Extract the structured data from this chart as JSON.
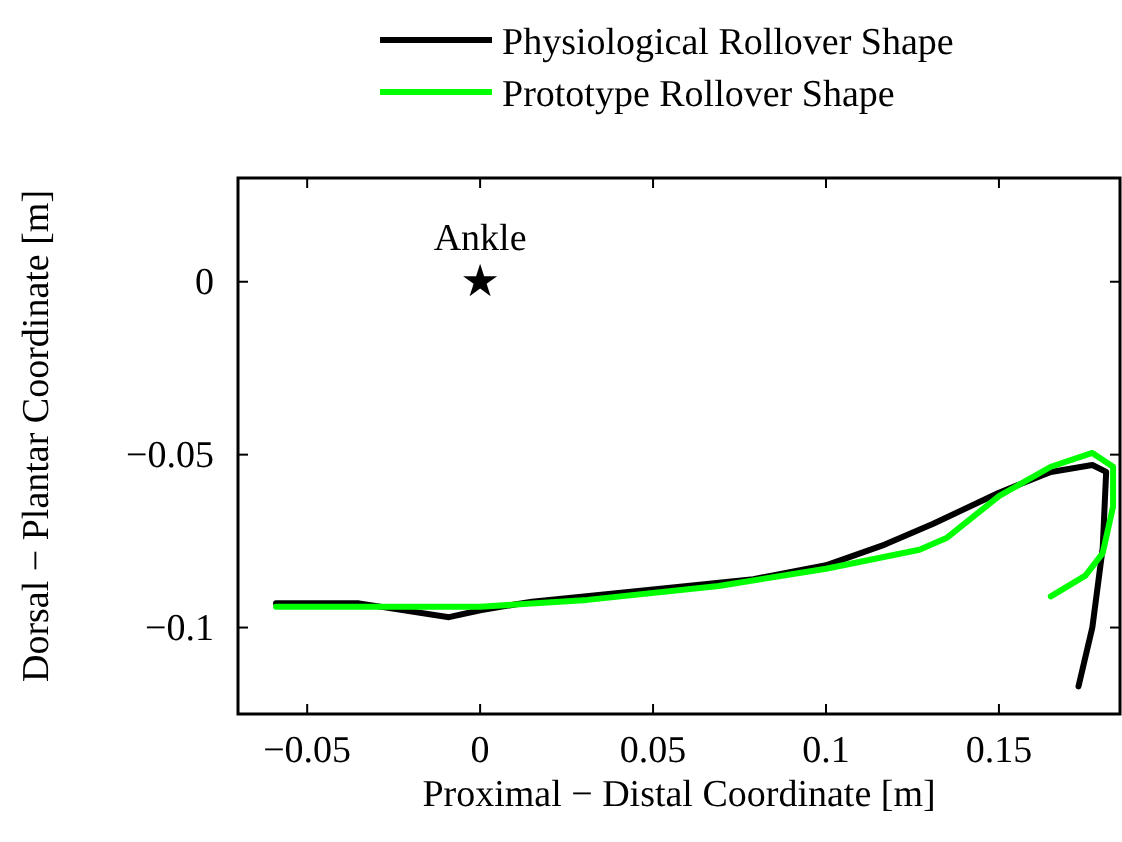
{
  "chart_data": {
    "type": "line",
    "xlabel": "Proximal − Distal Coordinate [m]",
    "ylabel": "Dorsal − Plantar Coordinate [m]",
    "xlim": [
      -0.07,
      0.185
    ],
    "ylim": [
      -0.125,
      0.03
    ],
    "xticks": [
      {
        "value": -0.05,
        "label": "−0.05"
      },
      0,
      0.05,
      0.1,
      0.15
    ],
    "yticks": [
      {
        "value": -0.1,
        "label": "−0.1"
      },
      {
        "value": -0.05,
        "label": "−0.05"
      },
      0
    ],
    "grid": false,
    "legend": "top right",
    "line_style": "solid",
    "annotations": [
      {
        "text": "Ankle",
        "x": 0,
        "y": 0
      }
    ],
    "series": [
      {
        "name": "Physiological Rollover Shape",
        "color": "#000000",
        "x": [
          -0.059,
          -0.035,
          -0.009,
          0.0,
          0.015,
          0.05,
          0.079,
          0.1,
          0.117,
          0.131,
          0.15,
          0.165,
          0.177,
          0.181,
          0.18,
          0.177,
          0.173
        ],
        "values": [
          -0.093,
          -0.093,
          -0.097,
          -0.095,
          -0.0925,
          -0.089,
          -0.086,
          -0.082,
          -0.076,
          -0.07,
          -0.061,
          -0.055,
          -0.053,
          -0.055,
          -0.077,
          -0.1,
          -0.117
        ]
      },
      {
        "name": "Prototype Rollover Shape",
        "color": "#00ff00",
        "x": [
          -0.059,
          0.0,
          0.031,
          0.069,
          0.1,
          0.127,
          0.135,
          0.15,
          0.165,
          0.177,
          0.183,
          0.183,
          0.18,
          0.175,
          0.165
        ],
        "values": [
          -0.094,
          -0.094,
          -0.092,
          -0.088,
          -0.083,
          -0.0775,
          -0.074,
          -0.062,
          -0.0535,
          -0.0495,
          -0.0535,
          -0.065,
          -0.0785,
          -0.085,
          -0.091
        ]
      },
      {
        "type": "scatter",
        "marker": "star",
        "color": "#000000",
        "x": [
          0
        ],
        "values": [
          0
        ]
      }
    ]
  }
}
